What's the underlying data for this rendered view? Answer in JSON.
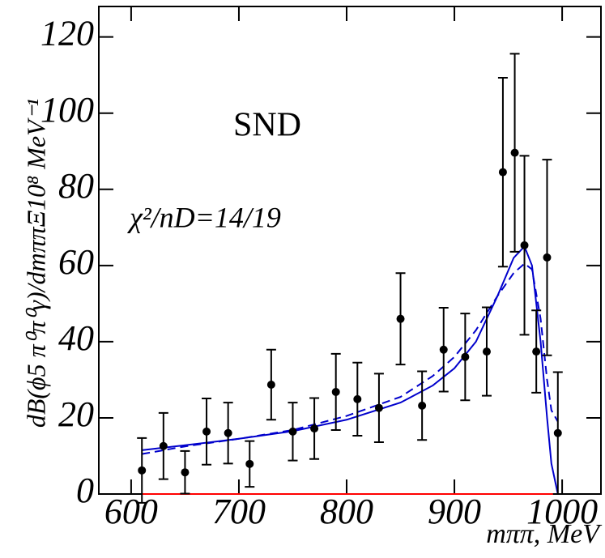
{
  "chart_data": {
    "type": "scatter",
    "annotations": [
      "SND",
      "χ²/nD=14/19"
    ],
    "xlabel": "mππ, MeV",
    "ylabel": "dB(ϕ5  π⁰π⁰γ)/dmππΞ10⁸ MeV⁻¹",
    "xlim": [
      570,
      1036
    ],
    "ylim": [
      0,
      128
    ],
    "xticks": [
      600,
      700,
      800,
      900,
      1000
    ],
    "yticks": [
      0,
      20,
      40,
      60,
      80,
      100,
      120
    ],
    "series": [
      {
        "type": "scatter",
        "color": "#000000",
        "x": [
          610,
          630,
          650,
          670,
          690,
          710,
          730,
          750,
          770,
          790,
          810,
          830,
          850,
          870,
          890,
          910,
          930,
          945,
          956,
          965,
          976,
          986,
          996
        ],
        "values": [
          6.2,
          12.6,
          5.7,
          16.4,
          16,
          7.9,
          28.7,
          16.4,
          17.2,
          26.8,
          24.9,
          22.6,
          46,
          23.2,
          37.9,
          36,
          37.4,
          84.5,
          89.6,
          65.3,
          37.4,
          62.1,
          16
        ],
        "errors": [
          8.5,
          8.7,
          5.6,
          8.7,
          8,
          6,
          9.2,
          7.6,
          8,
          10,
          9.6,
          9,
          12,
          9,
          11,
          11.4,
          11.6,
          24.8,
          26,
          23.5,
          10.8,
          25.7,
          16
        ]
      },
      {
        "type": "line",
        "color": "#0000cc",
        "dashed": false,
        "x": [
          610,
          650,
          700,
          750,
          800,
          850,
          880,
          900,
          920,
          940,
          955,
          965,
          972,
          980,
          986,
          990,
          996
        ],
        "values": [
          11.5,
          12.8,
          14.5,
          16.5,
          19.5,
          24,
          28.5,
          33,
          40,
          52,
          62,
          65,
          60,
          40,
          20,
          8,
          0
        ]
      },
      {
        "type": "line",
        "color": "#0000cc",
        "dashed": true,
        "x": [
          610,
          650,
          700,
          750,
          800,
          850,
          880,
          900,
          920,
          940,
          955,
          965,
          972,
          980,
          986,
          990,
          996
        ],
        "values": [
          10.5,
          12.5,
          14.5,
          16.8,
          20.5,
          25.5,
          31,
          36,
          43,
          52,
          58,
          60.5,
          59,
          46,
          30,
          22,
          19
        ]
      },
      {
        "type": "line",
        "color": "#ff0000",
        "dashed": false,
        "x": [
          610,
          996
        ],
        "values": [
          0,
          0
        ]
      }
    ]
  }
}
